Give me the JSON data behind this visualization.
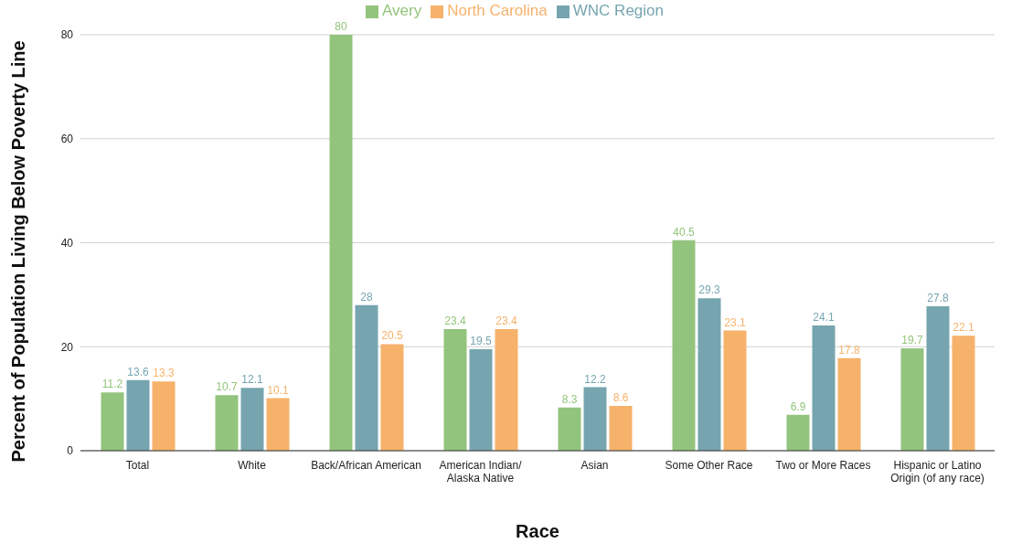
{
  "chart_data": {
    "type": "bar",
    "xlabel": "Race",
    "ylabel": "Percent of Population Living Below Poverty Line",
    "categories": [
      "Total",
      "White",
      "Back/African American",
      "American Indian/ Alaska Native",
      "Asian",
      "Some Other Race",
      "Two or More Races",
      "Hispanic or Latino Origin (of any race)"
    ],
    "series": [
      {
        "name": "Avery",
        "color": "#93c47d",
        "values": [
          11.2,
          10.7,
          80,
          23.4,
          8.3,
          40.5,
          6.9,
          19.7
        ]
      },
      {
        "name": "WNC Region",
        "color": "#76a5af",
        "values": [
          13.6,
          12.1,
          28,
          19.5,
          12.2,
          29.3,
          24.1,
          27.8
        ]
      },
      {
        "name": "North Carolina",
        "color": "#f6b26b",
        "values": [
          13.3,
          10.1,
          20.5,
          23.4,
          8.6,
          23.1,
          17.8,
          22.1
        ]
      }
    ],
    "ylim": [
      0,
      80
    ],
    "yticks": [
      0,
      20,
      40,
      60,
      80
    ],
    "grid": "y",
    "legend": "top",
    "data_labels": true
  }
}
